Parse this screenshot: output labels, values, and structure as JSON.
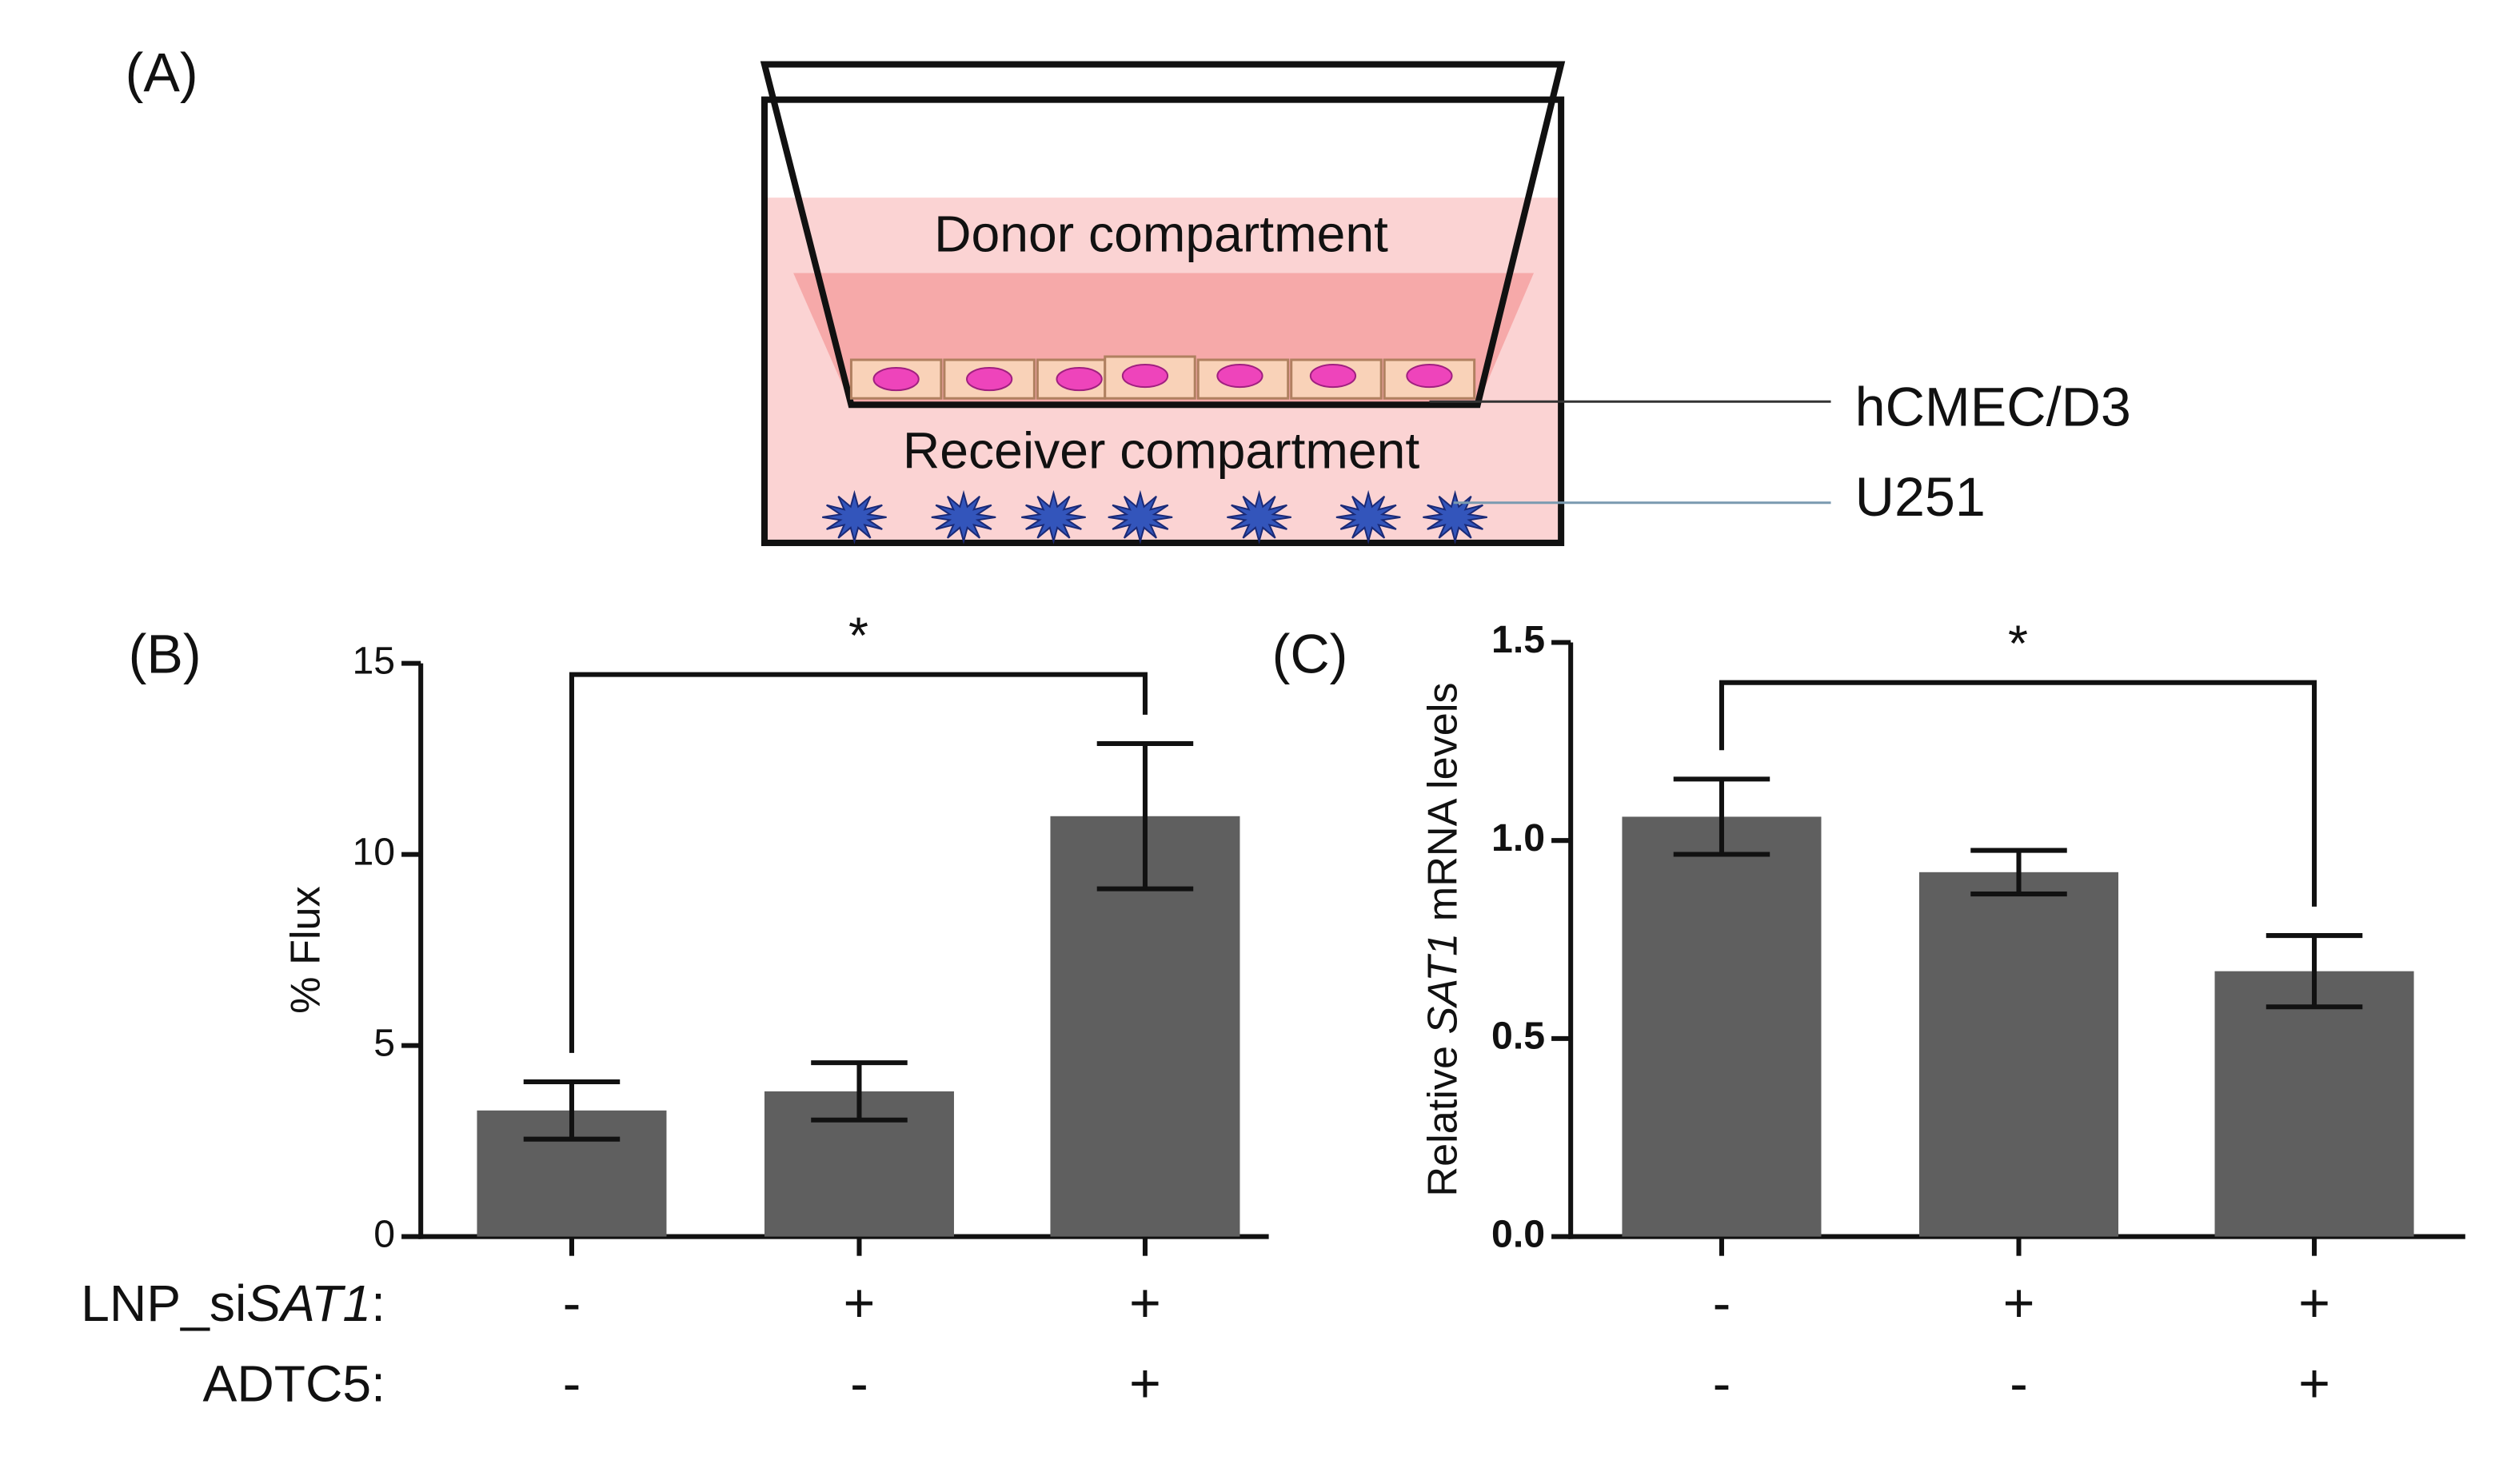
{
  "diagram": {
    "label": "(A)",
    "donor": "Donor compartment",
    "receiver": "Receiver compartment",
    "cell_layer": "hCMEC/D3",
    "bottom_cells": "U251"
  },
  "row_labels": [
    [
      "LNP_si",
      "SAT1",
      ":"
    ],
    [
      "ADTC5:"
    ]
  ],
  "chart_data": [
    {
      "type": "bar",
      "panel": "(B)",
      "ylabel": [
        "% Flux"
      ],
      "color": "#5f5f5f",
      "categories": [
        [
          "-",
          "-"
        ],
        [
          "+",
          "-"
        ],
        [
          "+",
          "+"
        ]
      ],
      "values": [
        3.3,
        3.8,
        11.0
      ],
      "errors": [
        0.75,
        0.75,
        1.9
      ],
      "ylim": [
        0,
        15
      ],
      "yticks": [
        0,
        5,
        10,
        15
      ],
      "annotation": "*",
      "bold_ticks": false
    },
    {
      "type": "bar",
      "panel": "(C)",
      "ylabel": [
        "Relative ",
        "SAT1",
        " mRNA levels"
      ],
      "color": "#5f5f5f",
      "categories": [
        [
          "-",
          "-"
        ],
        [
          "+",
          "-"
        ],
        [
          "+",
          "+"
        ]
      ],
      "values": [
        1.06,
        0.92,
        0.67
      ],
      "errors": [
        0.095,
        0.055,
        0.09
      ],
      "ylim": [
        0,
        1.5
      ],
      "yticks": [
        {
          "value": 0,
          "label": "0.0"
        },
        0.5,
        {
          "value": 1,
          "label": "1.0"
        },
        1.5
      ],
      "annotation": "*",
      "bold_ticks": true
    }
  ]
}
